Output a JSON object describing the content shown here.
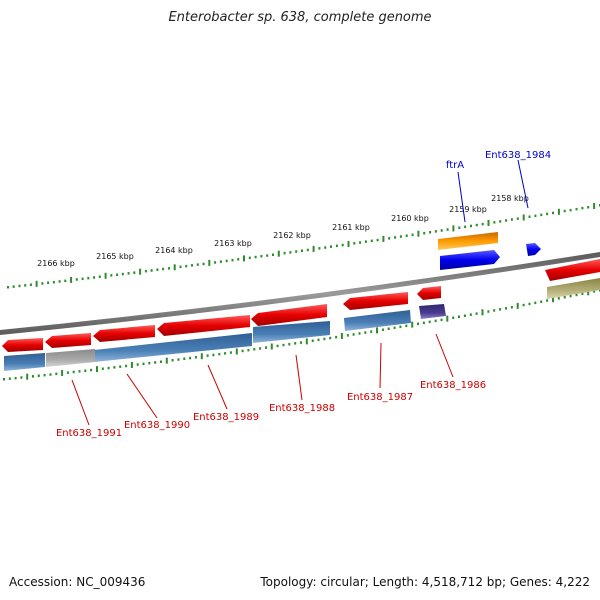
{
  "title": "Enterobacter sp. 638, complete genome",
  "footer": {
    "accession": "Accession: NC_009436",
    "summary": "Topology: circular; Length: 4,518,712 bp; Genes: 4,222"
  },
  "colors": {
    "red_gene": "#e60000",
    "blue_gene": "#0000ee",
    "orange_gene": "#ff9a00",
    "steel_blue": "#4a7fb5",
    "grey_gene": "#aaaaaa",
    "purple_gene": "#4a3d8f",
    "olive_gene": "#b5b07a",
    "backbone": "#777777",
    "tick_green": "#2e8b2e",
    "label_red": "#cc0000",
    "label_blue": "#0000cc"
  },
  "scale_labels": [
    "2158 kbp",
    "2159 kbp",
    "2160 kbp",
    "2161 kbp",
    "2162 kbp",
    "2163 kbp",
    "2164 kbp",
    "2165 kbp",
    "2166 kbp"
  ],
  "forward_gene_labels": [
    "ftrA",
    "Ent638_1984"
  ],
  "reverse_gene_labels": [
    "Ent638_1986",
    "Ent638_1987",
    "Ent638_1988",
    "Ent638_1989",
    "Ent638_1990",
    "Ent638_1991"
  ]
}
